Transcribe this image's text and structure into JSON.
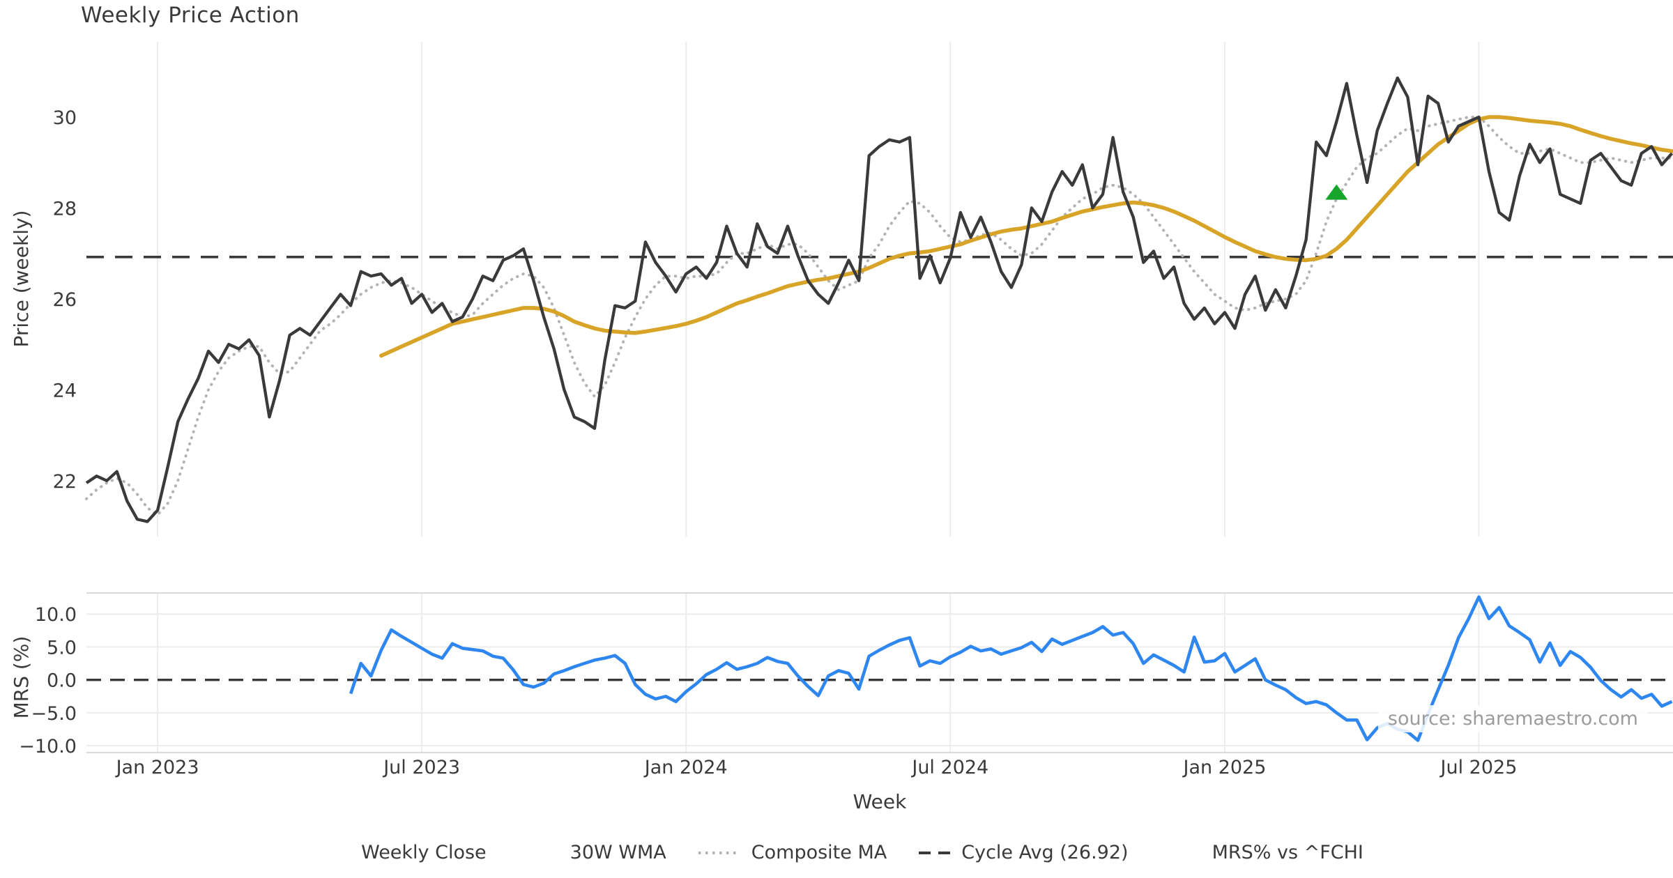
{
  "title": "Weekly Price Action",
  "source_text": "source: sharemaestro.com",
  "colors": {
    "close": "#3a3a3c",
    "wma": "#d8a428",
    "composite": "#b3b3b3",
    "cycle_avg": "#3a3a3c",
    "mrs": "#2e86f0",
    "marker_green": "#18a52b",
    "grid": "#ececec",
    "panel_border": "#d9d9d9",
    "tick_text": "#3a3a3a",
    "source_text_color": "#9b9b9b"
  },
  "legend": [
    {
      "label": "Weekly Close",
      "swatch": "solid",
      "color": "#3a3a3c"
    },
    {
      "label": "30W WMA",
      "swatch": "solid",
      "color": "#d8a428"
    },
    {
      "label": "Composite MA",
      "swatch": "dotted",
      "color": "#b3b3b3"
    },
    {
      "label": "Cycle Avg (26.92)",
      "swatch": "dashes",
      "color": "#3a3a3c"
    },
    {
      "label": "MRS% vs ^FCHI",
      "swatch": "solid",
      "color": "#2e86f0"
    }
  ],
  "chart_data": {
    "type": "line",
    "title": "Weekly Price Action",
    "x_label": "Week",
    "x_start_week": "2022-11-14",
    "x_step": "1 week",
    "n_weeks": 157,
    "x_ticks": [
      {
        "i": 7,
        "label": "Jan 2023"
      },
      {
        "i": 33,
        "label": "Jul 2023"
      },
      {
        "i": 59,
        "label": "Jan 2024"
      },
      {
        "i": 85,
        "label": "Jul 2024"
      },
      {
        "i": 112,
        "label": "Jan 2025"
      },
      {
        "i": 137,
        "label": "Jul 2025"
      }
    ],
    "panels": [
      {
        "name": "price",
        "ylabel": "Price (weekly)",
        "ylim": [
          20.77,
          31.655
        ],
        "yticks": [
          {
            "v": 30,
            "label": "30"
          },
          {
            "v": 28,
            "label": "28"
          },
          {
            "v": 26,
            "label": "26"
          },
          {
            "v": 24,
            "label": "24"
          },
          {
            "v": 22,
            "label": "22"
          }
        ],
        "reference_line": {
          "name": "cycle_avg",
          "value": 26.92,
          "style": "dashed"
        },
        "marker": {
          "name": "signal-marker",
          "shape": "triangle-up",
          "week_index": 123,
          "price": 28.35,
          "color": "#18a52b"
        }
      },
      {
        "name": "mrs",
        "ylabel": "MRS (%)",
        "ylim": [
          -11.05,
          13.2
        ],
        "yticks": [
          {
            "v": 10,
            "label": "10.0"
          },
          {
            "v": 5,
            "label": "5.0"
          },
          {
            "v": 0,
            "label": "0.0"
          },
          {
            "v": -5,
            "label": "−5.0"
          },
          {
            "v": -10,
            "label": "−10.0"
          }
        ],
        "reference_line": {
          "name": "zero",
          "value": 0.0,
          "style": "dashed"
        },
        "grid_y": [
          10,
          5,
          -5,
          -10
        ]
      }
    ],
    "series": [
      {
        "name": "weekly_close",
        "panel": 0,
        "legend": "Weekly Close",
        "color": "#3a3a3c",
        "style": "solid",
        "values": [
          21.95,
          22.1,
          22.0,
          22.2,
          21.55,
          21.15,
          21.1,
          21.35,
          22.3,
          23.3,
          23.8,
          24.25,
          24.85,
          24.6,
          25.0,
          24.9,
          25.1,
          24.75,
          23.4,
          24.2,
          25.2,
          25.35,
          25.2,
          25.5,
          25.8,
          26.1,
          25.85,
          26.6,
          26.5,
          26.55,
          26.3,
          26.45,
          25.9,
          26.1,
          25.7,
          25.9,
          25.5,
          25.6,
          26.0,
          26.5,
          26.4,
          26.85,
          26.95,
          27.1,
          26.4,
          25.6,
          24.9,
          24.0,
          23.4,
          23.3,
          23.15,
          24.65,
          25.85,
          25.8,
          25.95,
          27.25,
          26.8,
          26.5,
          26.15,
          26.55,
          26.7,
          26.45,
          26.8,
          27.6,
          27.0,
          26.7,
          27.65,
          27.15,
          27.0,
          27.6,
          26.95,
          26.4,
          26.1,
          25.9,
          26.35,
          26.85,
          26.4,
          29.15,
          29.35,
          29.5,
          29.45,
          29.55,
          26.45,
          26.95,
          26.35,
          26.9,
          27.9,
          27.35,
          27.8,
          27.25,
          26.6,
          26.25,
          26.75,
          28.0,
          27.7,
          28.35,
          28.8,
          28.5,
          28.95,
          28.0,
          28.3,
          29.55,
          28.35,
          27.8,
          26.8,
          27.05,
          26.45,
          26.7,
          25.9,
          25.55,
          25.8,
          25.45,
          25.7,
          25.35,
          26.1,
          26.5,
          25.75,
          26.2,
          25.8,
          26.5,
          27.3,
          29.45,
          29.15,
          29.9,
          30.74,
          29.6,
          28.56,
          29.7,
          30.3,
          30.86,
          30.44,
          28.95,
          30.46,
          30.3,
          29.45,
          29.8,
          29.9,
          30.0,
          28.8,
          27.9,
          27.73,
          28.7,
          29.4,
          29.0,
          29.3,
          28.3,
          28.2,
          28.1,
          29.05,
          29.2,
          28.9,
          28.6,
          28.5,
          29.2,
          29.35,
          28.95,
          29.2
        ]
      },
      {
        "name": "wma_30w",
        "panel": 0,
        "legend": "30W WMA",
        "color": "#d8a428",
        "style": "solid",
        "values": [
          null,
          null,
          null,
          null,
          null,
          null,
          null,
          null,
          null,
          null,
          null,
          null,
          null,
          null,
          null,
          null,
          null,
          null,
          null,
          null,
          null,
          null,
          null,
          null,
          null,
          null,
          null,
          null,
          null,
          24.75,
          24.85,
          24.95,
          25.05,
          25.15,
          25.25,
          25.35,
          25.45,
          25.5,
          25.55,
          25.6,
          25.65,
          25.7,
          25.75,
          25.8,
          25.8,
          25.78,
          25.72,
          25.62,
          25.5,
          25.42,
          25.35,
          25.3,
          25.28,
          25.26,
          25.25,
          25.28,
          25.32,
          25.36,
          25.4,
          25.45,
          25.52,
          25.6,
          25.7,
          25.8,
          25.9,
          25.97,
          26.05,
          26.12,
          26.2,
          26.28,
          26.33,
          26.38,
          26.42,
          26.45,
          26.5,
          26.55,
          26.6,
          26.68,
          26.78,
          26.88,
          26.95,
          27.0,
          27.02,
          27.05,
          27.1,
          27.15,
          27.2,
          27.28,
          27.35,
          27.42,
          27.48,
          27.52,
          27.55,
          27.6,
          27.65,
          27.7,
          27.78,
          27.85,
          27.92,
          27.97,
          28.02,
          28.06,
          28.1,
          28.12,
          28.1,
          28.06,
          28.0,
          27.92,
          27.82,
          27.72,
          27.6,
          27.48,
          27.36,
          27.25,
          27.15,
          27.05,
          26.98,
          26.92,
          26.88,
          26.86,
          26.85,
          26.88,
          26.95,
          27.1,
          27.3,
          27.55,
          27.8,
          28.05,
          28.3,
          28.55,
          28.8,
          29.0,
          29.2,
          29.4,
          29.55,
          29.7,
          29.85,
          29.95,
          30.0,
          30.0,
          29.98,
          29.95,
          29.92,
          29.9,
          29.88,
          29.85,
          29.8,
          29.72,
          29.65,
          29.58,
          29.52,
          29.47,
          29.42,
          29.38,
          29.33,
          29.28,
          29.25
        ]
      },
      {
        "name": "composite_ma",
        "panel": 0,
        "legend": "Composite MA",
        "color": "#b3b3b3",
        "style": "dotted",
        "values": [
          21.6,
          21.8,
          21.95,
          22.05,
          21.95,
          21.7,
          21.4,
          21.25,
          21.5,
          22.0,
          22.7,
          23.4,
          24.0,
          24.4,
          24.7,
          24.85,
          24.95,
          24.95,
          24.6,
          24.35,
          24.4,
          24.7,
          25.0,
          25.3,
          25.45,
          25.65,
          25.9,
          26.1,
          26.25,
          26.35,
          26.4,
          26.35,
          26.25,
          26.1,
          25.95,
          25.8,
          25.7,
          25.6,
          25.65,
          25.9,
          26.1,
          26.3,
          26.45,
          26.55,
          26.5,
          26.25,
          25.8,
          25.2,
          24.6,
          24.15,
          23.85,
          24.1,
          24.6,
          25.15,
          25.6,
          26.0,
          26.3,
          26.5,
          26.5,
          26.45,
          26.5,
          26.5,
          26.55,
          26.8,
          27.0,
          27.0,
          27.1,
          27.2,
          27.1,
          27.2,
          27.2,
          27.0,
          26.7,
          26.4,
          26.2,
          26.3,
          26.4,
          26.9,
          27.2,
          27.6,
          27.9,
          28.15,
          28.1,
          27.9,
          27.6,
          27.35,
          27.25,
          27.3,
          27.4,
          27.45,
          27.3,
          27.1,
          26.95,
          27.0,
          27.2,
          27.5,
          27.8,
          28.0,
          28.2,
          28.3,
          28.45,
          28.5,
          28.45,
          28.3,
          28.1,
          27.8,
          27.5,
          27.2,
          26.9,
          26.6,
          26.35,
          26.1,
          25.95,
          25.8,
          25.75,
          25.8,
          25.9,
          25.95,
          26.0,
          26.1,
          26.4,
          27.0,
          27.7,
          28.2,
          28.55,
          28.9,
          29.1,
          29.2,
          29.4,
          29.6,
          29.75,
          29.7,
          29.8,
          29.85,
          29.9,
          29.95,
          30.0,
          30.0,
          29.8,
          29.55,
          29.35,
          29.2,
          29.2,
          29.25,
          29.3,
          29.2,
          29.1,
          29.0,
          29.0,
          29.05,
          29.1,
          29.05,
          29.0,
          29.05,
          29.1,
          29.1,
          29.1
        ]
      },
      {
        "name": "mrs_pct",
        "panel": 1,
        "legend": "MRS% vs ^FCHI",
        "color": "#2e86f0",
        "style": "solid",
        "values": [
          null,
          null,
          null,
          null,
          null,
          null,
          null,
          null,
          null,
          null,
          null,
          null,
          null,
          null,
          null,
          null,
          null,
          null,
          null,
          null,
          null,
          null,
          null,
          null,
          null,
          null,
          -2.1,
          2.5,
          0.6,
          4.5,
          7.6,
          6.6,
          5.7,
          4.8,
          3.9,
          3.3,
          5.5,
          4.8,
          4.6,
          4.4,
          3.6,
          3.3,
          1.5,
          -0.7,
          -1.1,
          -0.5,
          0.9,
          1.4,
          2.0,
          2.5,
          3.0,
          3.3,
          3.7,
          2.5,
          -0.7,
          -2.2,
          -2.9,
          -2.5,
          -3.3,
          -1.8,
          -0.6,
          0.8,
          1.6,
          2.6,
          1.6,
          2.0,
          2.5,
          3.4,
          2.8,
          2.5,
          0.6,
          -1.0,
          -2.4,
          0.6,
          1.4,
          1.0,
          -1.4,
          3.6,
          4.5,
          5.3,
          6.0,
          6.4,
          2.1,
          2.9,
          2.5,
          3.5,
          4.2,
          5.1,
          4.4,
          4.7,
          3.9,
          4.4,
          4.9,
          5.7,
          4.3,
          6.2,
          5.4,
          6.0,
          6.6,
          7.2,
          8.1,
          6.8,
          7.2,
          5.5,
          2.5,
          3.8,
          3.0,
          2.2,
          1.2,
          6.5,
          2.7,
          2.9,
          4.0,
          1.2,
          2.2,
          3.2,
          0.0,
          -0.8,
          -1.5,
          -2.7,
          -3.6,
          -3.3,
          -3.8,
          -5.0,
          -6.1,
          -6.1,
          -9.1,
          -7.3,
          -6.6,
          -7.5,
          -7.9,
          -9.2,
          -5.2,
          -1.5,
          2.2,
          6.4,
          9.3,
          12.6,
          9.3,
          11.0,
          8.2,
          7.2,
          6.1,
          2.7,
          5.6,
          2.2,
          4.3,
          3.4,
          1.9,
          -0.1,
          -1.5,
          -2.6,
          -1.5,
          -2.8,
          -2.2,
          -4.0,
          -3.3
        ]
      }
    ]
  }
}
